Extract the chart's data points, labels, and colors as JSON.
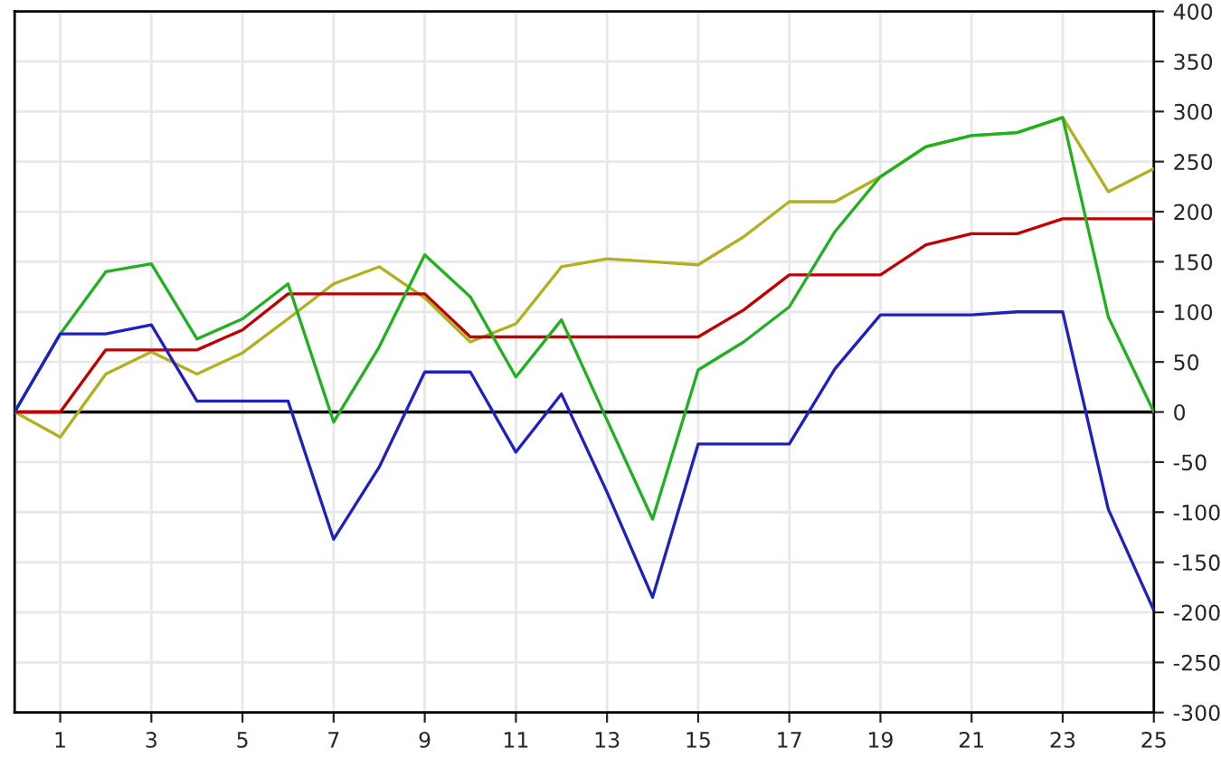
{
  "chart_data": {
    "type": "line",
    "x": [
      0,
      1,
      2,
      3,
      4,
      5,
      6,
      7,
      8,
      9,
      10,
      11,
      12,
      13,
      14,
      15,
      16,
      17,
      18,
      19,
      20,
      21,
      22,
      23,
      24,
      25
    ],
    "series": [
      {
        "color": "#b0b020",
        "values": [
          0,
          -25,
          38,
          60,
          38,
          59,
          93,
          128,
          145,
          114,
          70,
          88,
          145,
          153,
          150,
          147,
          175,
          210,
          210,
          235,
          265,
          276,
          279,
          294,
          220,
          243
        ]
      },
      {
        "color": "#c00000",
        "values": [
          0,
          0,
          62,
          62,
          62,
          82,
          118,
          118,
          118,
          118,
          75,
          75,
          75,
          75,
          75,
          75,
          102,
          137,
          137,
          137,
          167,
          178,
          178,
          193,
          193,
          193
        ]
      },
      {
        "color": "#20b020",
        "values": [
          0,
          78,
          140,
          148,
          73,
          93,
          128,
          -10,
          65,
          157,
          115,
          35,
          92,
          -8,
          -107,
          42,
          70,
          105,
          180,
          235,
          265,
          276,
          279,
          294,
          95,
          0
        ]
      },
      {
        "color": "#2020c0",
        "values": [
          0,
          78,
          78,
          87,
          11,
          11,
          11,
          -127,
          -55,
          40,
          40,
          -40,
          18,
          -80,
          -185,
          -32,
          -32,
          -32,
          43,
          97,
          97,
          97,
          100,
          100,
          -97,
          -198
        ]
      }
    ],
    "xlim": [
      0,
      25
    ],
    "xticks": [
      1,
      3,
      5,
      7,
      9,
      11,
      13,
      15,
      17,
      19,
      21,
      23,
      25
    ],
    "ylim": [
      -300,
      400
    ],
    "yticks": [
      -300,
      -250,
      -200,
      -150,
      -100,
      -50,
      0,
      50,
      100,
      150,
      200,
      250,
      300,
      350,
      400
    ],
    "ref_lines": [
      {
        "axis": "y",
        "value": 0,
        "color": "#000000"
      }
    ],
    "grid": true,
    "marker": "none",
    "line_style": "solid",
    "legend": false
  }
}
